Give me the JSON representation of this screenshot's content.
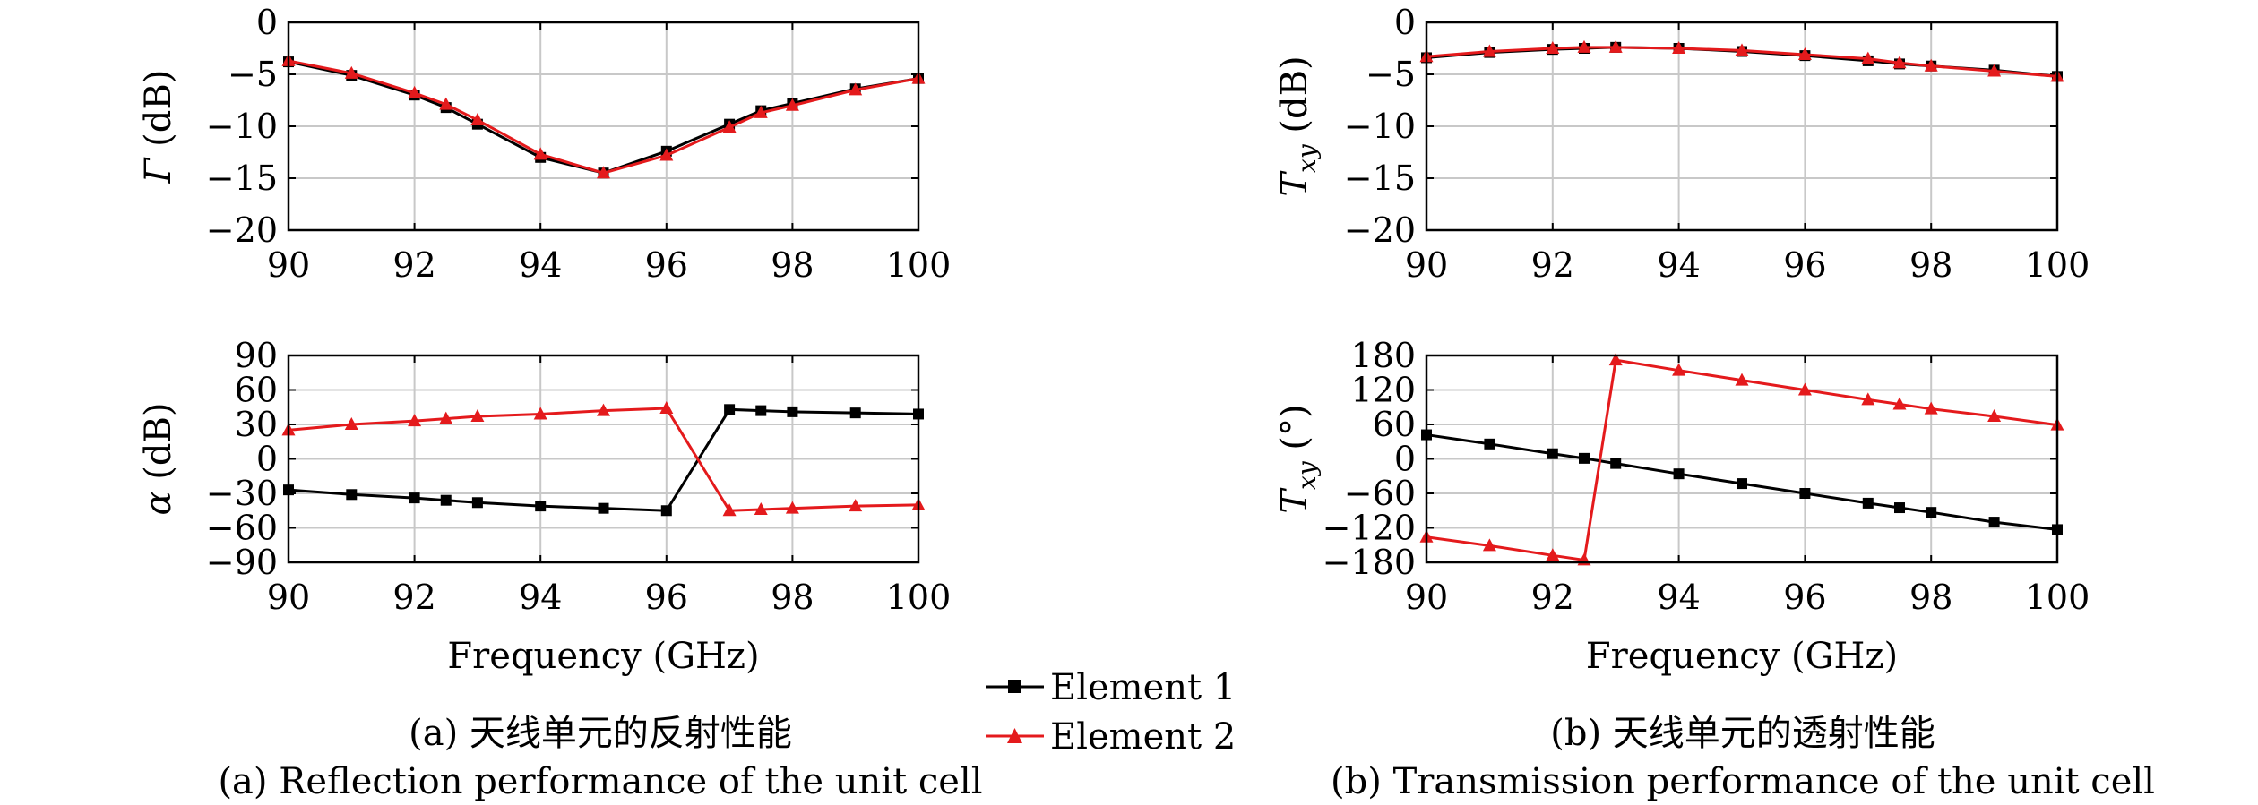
{
  "colors": {
    "element1": "#000000",
    "element2": "#e41a1c",
    "grid": "#c8c8c8"
  },
  "legend": {
    "entries": [
      "Element 1",
      "Element 2"
    ],
    "placement": "bottom-center"
  },
  "captions": {
    "a_cn": "(a) 天线单元的反射性能",
    "a_en": "(a) Reflection performance of the unit cell",
    "b_cn": "(b) 天线单元的透射性能",
    "b_en": "(b) Transmission performance of the unit cell"
  },
  "chart_data": [
    {
      "id": "gamma",
      "type": "line",
      "ylabel_main": "Γ",
      "ylabel_unit": " (dB)",
      "xlabel": "",
      "xlim": [
        90,
        100
      ],
      "ylim": [
        -20,
        0
      ],
      "xticks": [
        90,
        92,
        94,
        96,
        98,
        100
      ],
      "yticks": [
        0,
        -5,
        -10,
        -15,
        -20
      ],
      "grid": true,
      "series": [
        {
          "name": "Element 1",
          "marker": "square",
          "x": [
            90,
            91,
            92,
            92.5,
            93,
            94,
            95,
            96,
            97,
            97.5,
            98,
            99,
            100
          ],
          "y": [
            -3.8,
            -5.1,
            -7.0,
            -8.2,
            -9.8,
            -13.0,
            -14.5,
            -12.4,
            -9.8,
            -8.5,
            -7.8,
            -6.4,
            -5.4
          ]
        },
        {
          "name": "Element 2",
          "marker": "triangle",
          "x": [
            90,
            91,
            92,
            92.5,
            93,
            94,
            95,
            96,
            97,
            97.5,
            98,
            99,
            100
          ],
          "y": [
            -3.7,
            -4.9,
            -6.8,
            -7.9,
            -9.4,
            -12.7,
            -14.5,
            -12.8,
            -10.1,
            -8.7,
            -8.0,
            -6.5,
            -5.4
          ]
        }
      ]
    },
    {
      "id": "alpha",
      "type": "line",
      "ylabel_main": "α",
      "ylabel_unit": " (dB)",
      "xlabel": "Frequency (GHz)",
      "xlim": [
        90,
        100
      ],
      "ylim": [
        -90,
        90
      ],
      "xticks": [
        90,
        92,
        94,
        96,
        98,
        100
      ],
      "yticks": [
        90,
        60,
        30,
        0,
        -30,
        -60,
        -90
      ],
      "grid": true,
      "series": [
        {
          "name": "Element 1",
          "marker": "square",
          "x": [
            90,
            91,
            92,
            92.5,
            93,
            94,
            95,
            96,
            97,
            97.5,
            98,
            99,
            100
          ],
          "y": [
            -27,
            -31,
            -34,
            -36,
            -38,
            -41,
            -43,
            -45,
            43,
            42,
            41,
            40,
            39
          ]
        },
        {
          "name": "Element 2",
          "marker": "triangle",
          "x": [
            90,
            91,
            92,
            92.5,
            93,
            94,
            95,
            96,
            97,
            97.5,
            98,
            99,
            100
          ],
          "y": [
            25,
            30,
            33,
            35,
            37,
            39,
            42,
            44,
            -45,
            -44,
            -43,
            -41,
            -40
          ]
        }
      ]
    },
    {
      "id": "txy_mag",
      "type": "line",
      "ylabel_main": "T",
      "ylabel_sub": "xy",
      "ylabel_unit": " (dB)",
      "xlabel": "",
      "xlim": [
        90,
        100
      ],
      "ylim": [
        -20,
        0
      ],
      "xticks": [
        90,
        92,
        94,
        96,
        98,
        100
      ],
      "yticks": [
        0,
        -5,
        -10,
        -15,
        -20
      ],
      "grid": true,
      "series": [
        {
          "name": "Element 1",
          "marker": "square",
          "x": [
            90,
            91,
            92,
            92.5,
            93,
            94,
            95,
            96,
            97,
            97.5,
            98,
            99,
            100
          ],
          "y": [
            -3.4,
            -2.9,
            -2.6,
            -2.5,
            -2.4,
            -2.5,
            -2.8,
            -3.2,
            -3.7,
            -4.0,
            -4.2,
            -4.6,
            -5.2
          ]
        },
        {
          "name": "Element 2",
          "marker": "triangle",
          "x": [
            90,
            91,
            92,
            92.5,
            93,
            94,
            95,
            96,
            97,
            97.5,
            98,
            99,
            100
          ],
          "y": [
            -3.3,
            -2.8,
            -2.5,
            -2.4,
            -2.4,
            -2.5,
            -2.7,
            -3.1,
            -3.5,
            -3.9,
            -4.2,
            -4.7,
            -5.2
          ]
        }
      ]
    },
    {
      "id": "txy_phase",
      "type": "line",
      "ylabel_main": "T",
      "ylabel_sub": "xy",
      "ylabel_unit": " (°)",
      "xlabel": "Frequency (GHz)",
      "xlim": [
        90,
        100
      ],
      "ylim": [
        -180,
        180
      ],
      "xticks": [
        90,
        92,
        94,
        96,
        98,
        100
      ],
      "yticks": [
        180,
        120,
        60,
        0,
        -60,
        -120,
        -180
      ],
      "grid": true,
      "series": [
        {
          "name": "Element 1",
          "marker": "square",
          "x": [
            90,
            91,
            92,
            92.5,
            93,
            94,
            95,
            96,
            97,
            97.5,
            98,
            99,
            100
          ],
          "y": [
            42,
            26,
            9,
            1,
            -8,
            -26,
            -43,
            -60,
            -77,
            -85,
            -93,
            -110,
            -123
          ]
        },
        {
          "name": "Element 2",
          "marker": "triangle",
          "x": [
            90,
            91,
            92,
            92.5,
            93,
            94,
            95,
            96,
            97,
            97.5,
            98,
            99,
            100
          ],
          "y": [
            -136,
            -151,
            -168,
            -176,
            172,
            154,
            137,
            120,
            103,
            95,
            87,
            74,
            59
          ]
        }
      ]
    }
  ]
}
